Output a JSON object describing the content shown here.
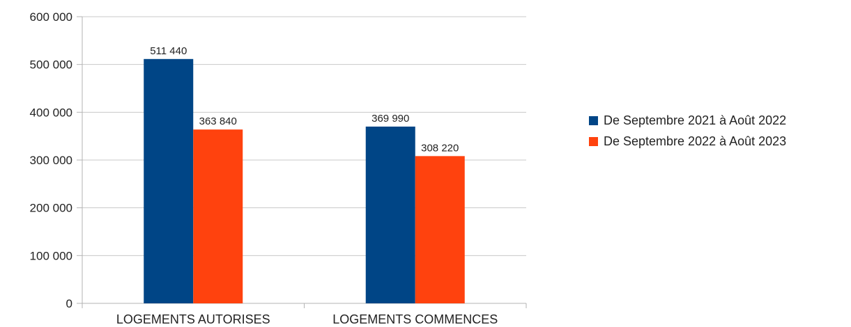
{
  "chart_data": {
    "type": "bar",
    "categories": [
      "LOGEMENTS AUTORISES",
      "LOGEMENTS COMMENCES"
    ],
    "series": [
      {
        "name": "De Septembre 2021 à Août 2022",
        "values": [
          511440,
          369990
        ],
        "labels": [
          "511 440",
          "369 990"
        ],
        "color": "#004586"
      },
      {
        "name": "De Septembre 2022 à Août 2023",
        "values": [
          363840,
          308220
        ],
        "labels": [
          "363 840",
          "308 220"
        ],
        "color": "#ff420e"
      }
    ],
    "ylim": [
      0,
      600000
    ],
    "yticks": [
      0,
      100000,
      200000,
      300000,
      400000,
      500000,
      600000
    ],
    "ytick_labels": [
      "0",
      "100 000",
      "200 000",
      "300 000",
      "400 000",
      "500 000",
      "600 000"
    ],
    "grid": true,
    "legend_position": "right"
  }
}
